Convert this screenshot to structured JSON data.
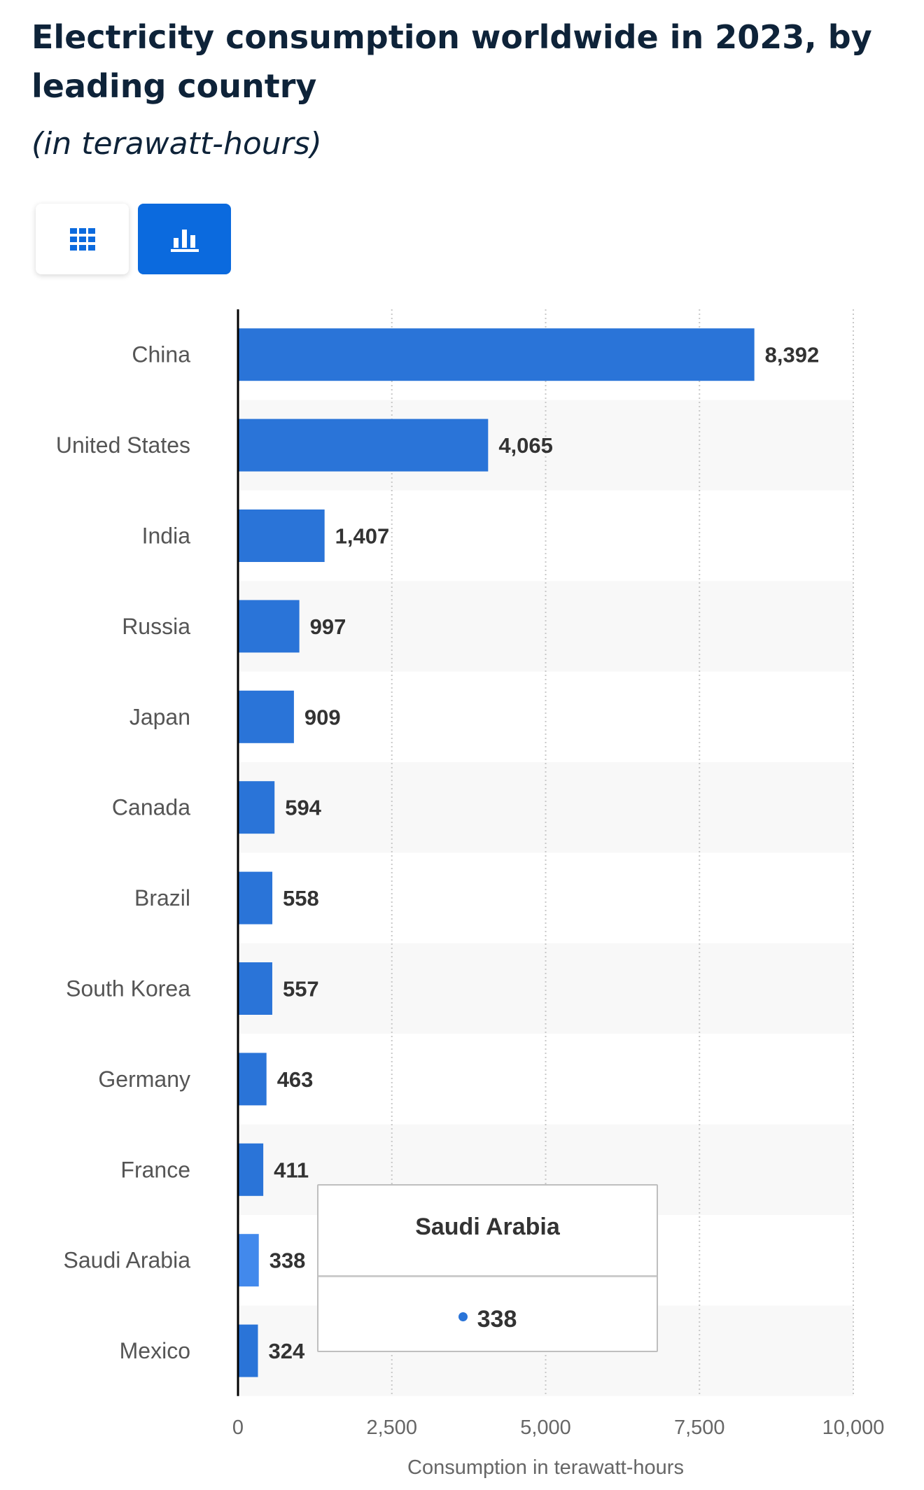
{
  "header": {
    "title": "Electricity consumption worldwide in 2023, by leading country",
    "subtitle": "(in terawatt-hours)"
  },
  "view_toggle": {
    "table_icon": "grid-table-icon",
    "chart_icon": "bar-chart-icon",
    "active": "chart",
    "active_color": "#0b6ade"
  },
  "chart_data": {
    "type": "bar",
    "orientation": "horizontal",
    "categories": [
      "China",
      "United States",
      "India",
      "Russia",
      "Japan",
      "Canada",
      "Brazil",
      "South Korea",
      "Germany",
      "France",
      "Saudi Arabia",
      "Mexico"
    ],
    "values": [
      8392,
      4065,
      1407,
      997,
      909,
      594,
      558,
      557,
      463,
      411,
      338,
      324
    ],
    "value_labels": [
      "8,392",
      "4,065",
      "1,407",
      "997",
      "909",
      "594",
      "558",
      "557",
      "463",
      "411",
      "338",
      "324"
    ],
    "xlabel": "Consumption in terawatt-hours",
    "xlim": [
      0,
      10000
    ],
    "xticks": [
      0,
      2500,
      5000,
      7500,
      10000
    ],
    "xtick_labels": [
      "0",
      "2,500",
      "5,000",
      "7,500",
      "10,000"
    ],
    "grid": "vertical dotted",
    "bar_color": "#2a74d8",
    "highlight_color": "#4289ec",
    "highlighted_category": "Saudi Arabia",
    "stripe_color": "#f8f8f8"
  },
  "tooltip": {
    "title": "Saudi Arabia",
    "value": "338",
    "dot_color": "#2a74d8"
  }
}
